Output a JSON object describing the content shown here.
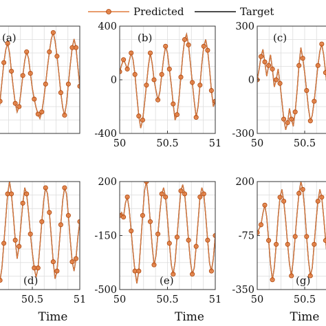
{
  "legend": {
    "items": [
      {
        "name": "Predicted",
        "color": "#e07a3c",
        "marker": "circle"
      },
      {
        "name": "Target",
        "color": "#111111",
        "marker": "none"
      }
    ],
    "placement": "top-center"
  },
  "chart_data": [
    {
      "type": "line",
      "panel_label": "(a)",
      "xlabel": "",
      "xlim": [
        50,
        51
      ],
      "ylim": [
        -500,
        500
      ],
      "xticks": [],
      "yticks": [],
      "yticklabels": [],
      "grid": true,
      "x": [
        50.0,
        50.02,
        50.04,
        50.06,
        50.08,
        50.1,
        50.12,
        50.14,
        50.16,
        50.18,
        50.2,
        50.22,
        50.24,
        50.26,
        50.28,
        50.3,
        50.32,
        50.34,
        50.36,
        50.38,
        50.4,
        50.42,
        50.44,
        50.46,
        50.48,
        50.5,
        50.52,
        50.54,
        50.56,
        50.58,
        50.6,
        50.62,
        50.64,
        50.66,
        50.68,
        50.7,
        50.72,
        50.74,
        50.76,
        50.78,
        50.8,
        50.82,
        50.84,
        50.86,
        50.88,
        50.9,
        50.92,
        50.94,
        50.96,
        50.98,
        51.0
      ],
      "series": [
        {
          "name": "Target",
          "values": [
            200,
            150,
            60,
            -60,
            -220,
            -380,
            -440,
            -360,
            -200,
            -20,
            160,
            280,
            340,
            250,
            80,
            -80,
            -220,
            -300,
            -250,
            -120,
            40,
            180,
            260,
            200,
            60,
            -80,
            -180,
            -260,
            -320,
            -360,
            -300,
            -180,
            -40,
            120,
            260,
            380,
            440,
            360,
            220,
            60,
            -120,
            -260,
            -330,
            -220,
            -40,
            140,
            300,
            380,
            300,
            120,
            -60
          ]
        },
        {
          "name": "Predicted",
          "values": [
            200,
            150,
            60,
            -60,
            -220,
            -380,
            -440,
            -360,
            -200,
            -20,
            160,
            280,
            340,
            250,
            80,
            -80,
            -220,
            -300,
            -250,
            -120,
            40,
            180,
            260,
            200,
            60,
            -80,
            -180,
            -260,
            -320,
            -360,
            -300,
            -180,
            -40,
            120,
            260,
            380,
            440,
            360,
            220,
            60,
            -120,
            -260,
            -330,
            -220,
            -40,
            140,
            300,
            380,
            300,
            120,
            -60
          ]
        }
      ]
    },
    {
      "type": "line",
      "panel_label": "(b)",
      "xlabel": "",
      "xlim": [
        50,
        51
      ],
      "ylim": [
        -400,
        400
      ],
      "xticks": [
        50,
        50.5,
        51
      ],
      "yticks": [
        -400,
        0,
        400
      ],
      "yticklabels": [
        "-400",
        "0",
        "400"
      ],
      "grid": true,
      "x": [
        50.0,
        50.02,
        50.04,
        50.06,
        50.08,
        50.1,
        50.12,
        50.14,
        50.16,
        50.18,
        50.2,
        50.22,
        50.24,
        50.26,
        50.28,
        50.3,
        50.32,
        50.34,
        50.36,
        50.38,
        50.4,
        50.42,
        50.44,
        50.46,
        50.48,
        50.5,
        50.52,
        50.54,
        50.56,
        50.58,
        50.6,
        50.62,
        50.64,
        50.66,
        50.68,
        50.7,
        50.72,
        50.74,
        50.76,
        50.78,
        50.8,
        50.82,
        50.84,
        50.86,
        50.88,
        50.9,
        50.92,
        50.94,
        50.96,
        50.98,
        51.0
      ],
      "series": [
        {
          "name": "Target",
          "values": [
            60,
            110,
            150,
            120,
            80,
            140,
            200,
            150,
            40,
            -120,
            -270,
            -360,
            -300,
            -180,
            -40,
            100,
            200,
            120,
            0,
            -80,
            -150,
            -90,
            40,
            160,
            250,
            200,
            80,
            -40,
            -180,
            -300,
            -260,
            -140,
            20,
            180,
            300,
            340,
            260,
            120,
            -20,
            -160,
            -280,
            -200,
            -40,
            120,
            250,
            300,
            220,
            80,
            -80,
            -200,
            -160
          ]
        },
        {
          "name": "Predicted",
          "values": [
            60,
            110,
            150,
            120,
            80,
            140,
            200,
            150,
            40,
            -120,
            -270,
            -360,
            -300,
            -180,
            -40,
            100,
            200,
            120,
            0,
            -80,
            -150,
            -90,
            40,
            160,
            250,
            200,
            80,
            -40,
            -180,
            -300,
            -260,
            -140,
            20,
            180,
            300,
            340,
            260,
            120,
            -20,
            -160,
            -280,
            -200,
            -40,
            120,
            250,
            300,
            220,
            80,
            -80,
            -200,
            -160
          ]
        }
      ]
    },
    {
      "type": "line",
      "panel_label": "(c)",
      "xlabel": "",
      "xlim": [
        50,
        51
      ],
      "ylim": [
        -300,
        300
      ],
      "xticks": [
        50,
        50.5
      ],
      "yticks": [
        -300,
        0,
        300
      ],
      "yticklabels": [
        "-300",
        "0",
        "300"
      ],
      "grid": true,
      "x": [
        50.0,
        50.02,
        50.04,
        50.06,
        50.08,
        50.1,
        50.12,
        50.14,
        50.16,
        50.18,
        50.2,
        50.22,
        50.24,
        50.26,
        50.28,
        50.3,
        50.32,
        50.34,
        50.36,
        50.38,
        50.4,
        50.42,
        50.44,
        50.46,
        50.48,
        50.5,
        50.52,
        50.54,
        50.56,
        50.58,
        50.6,
        50.62,
        50.64,
        50.66,
        50.68,
        50.7,
        50.72,
        50.74,
        50.76,
        50.78,
        50.8,
        50.82,
        50.84,
        50.86,
        50.88,
        50.9,
        50.92,
        50.94,
        50.96,
        50.98,
        51.0
      ],
      "series": [
        {
          "name": "Target",
          "values": [
            0,
            60,
            130,
            170,
            100,
            20,
            80,
            140,
            60,
            -40,
            0,
            60,
            -20,
            -120,
            -220,
            -280,
            -240,
            -160,
            -220,
            -260,
            -180,
            -60,
            80,
            180,
            120,
            40,
            -60,
            -160,
            -230,
            -200,
            -120,
            -20,
            80,
            160,
            200,
            140,
            40,
            -60,
            -140,
            -200,
            -160,
            -80,
            20,
            120,
            200,
            260,
            220,
            140,
            40,
            -60,
            -120
          ]
        },
        {
          "name": "Predicted",
          "values": [
            0,
            60,
            130,
            170,
            100,
            20,
            80,
            140,
            60,
            -40,
            0,
            60,
            -20,
            -120,
            -220,
            -280,
            -240,
            -160,
            -220,
            -260,
            -180,
            -60,
            80,
            180,
            120,
            40,
            -60,
            -160,
            -230,
            -200,
            -120,
            -20,
            80,
            160,
            200,
            140,
            40,
            -60,
            -140,
            -200,
            -160,
            -80,
            20,
            120,
            200,
            260,
            220,
            140,
            40,
            -60,
            -120
          ]
        }
      ]
    },
    {
      "type": "line",
      "panel_label": "(d)",
      "xlabel": "Time",
      "xlim": [
        50,
        51
      ],
      "ylim": [
        -500,
        200
      ],
      "xticks": [
        50.5,
        51
      ],
      "yticks": [],
      "yticklabels": [],
      "grid": true,
      "x": [
        50.0,
        50.02,
        50.04,
        50.06,
        50.08,
        50.1,
        50.12,
        50.14,
        50.16,
        50.18,
        50.2,
        50.22,
        50.24,
        50.26,
        50.28,
        50.3,
        50.32,
        50.34,
        50.36,
        50.38,
        50.4,
        50.42,
        50.44,
        50.46,
        50.48,
        50.5,
        50.52,
        50.54,
        50.56,
        50.58,
        50.6,
        50.62,
        50.64,
        50.66,
        50.68,
        50.7,
        50.72,
        50.74,
        50.76,
        50.78,
        50.8,
        50.82,
        50.84,
        50.86,
        50.88,
        50.9,
        50.92,
        50.94,
        50.96,
        50.98,
        51.0
      ],
      "series": [
        {
          "name": "Target",
          "values": [
            -100,
            0,
            120,
            180,
            100,
            -40,
            -200,
            -350,
            -440,
            -360,
            -200,
            -40,
            120,
            200,
            120,
            -20,
            -180,
            -300,
            -220,
            -80,
            60,
            160,
            120,
            0,
            -140,
            -260,
            -360,
            -420,
            -360,
            -220,
            -60,
            80,
            160,
            120,
            0,
            -160,
            -320,
            -430,
            -380,
            -240,
            -80,
            80,
            160,
            120,
            -20,
            -180,
            -320,
            -380,
            -300,
            -160,
            -60
          ]
        },
        {
          "name": "Predicted",
          "values": [
            -100,
            0,
            120,
            180,
            100,
            -40,
            -200,
            -350,
            -440,
            -360,
            -200,
            -40,
            120,
            200,
            120,
            -20,
            -180,
            -300,
            -220,
            -80,
            60,
            160,
            120,
            0,
            -140,
            -260,
            -360,
            -420,
            -360,
            -220,
            -60,
            80,
            160,
            120,
            0,
            -160,
            -320,
            -430,
            -380,
            -240,
            -80,
            80,
            160,
            120,
            -20,
            -180,
            -320,
            -380,
            -300,
            -160,
            -60
          ]
        }
      ]
    },
    {
      "type": "line",
      "panel_label": "(e)",
      "xlabel": "Time",
      "xlim": [
        50,
        51
      ],
      "ylim": [
        -500,
        200
      ],
      "xticks": [
        50,
        50.5,
        51
      ],
      "yticks": [
        -500,
        -150,
        200
      ],
      "yticklabels": [
        "-500",
        "-150",
        "200"
      ],
      "grid": true,
      "x": [
        50.0,
        50.02,
        50.04,
        50.06,
        50.08,
        50.1,
        50.12,
        50.14,
        50.16,
        50.18,
        50.2,
        50.22,
        50.24,
        50.26,
        50.28,
        50.3,
        50.32,
        50.34,
        50.36,
        50.38,
        50.4,
        50.42,
        50.44,
        50.46,
        50.48,
        50.5,
        50.52,
        50.54,
        50.56,
        50.58,
        50.6,
        50.62,
        50.64,
        50.66,
        50.68,
        50.7,
        50.72,
        50.74,
        50.76,
        50.78,
        50.8,
        50.82,
        50.84,
        50.86,
        50.88,
        50.9,
        50.92,
        50.94,
        50.96,
        50.98,
        51.0
      ],
      "series": [
        {
          "name": "Target",
          "values": [
            -20,
            0,
            -30,
            60,
            100,
            20,
            -120,
            -260,
            -380,
            -460,
            -380,
            -200,
            -20,
            140,
            200,
            100,
            -60,
            -220,
            -340,
            -280,
            -140,
            0,
            120,
            160,
            100,
            -40,
            -200,
            -340,
            -400,
            -320,
            -160,
            0,
            140,
            180,
            120,
            -20,
            -180,
            -320,
            -400,
            -360,
            -220,
            -60,
            100,
            160,
            120,
            -20,
            -180,
            -330,
            -380,
            -300,
            -150
          ]
        },
        {
          "name": "Predicted",
          "values": [
            -20,
            0,
            -30,
            60,
            100,
            20,
            -120,
            -260,
            -380,
            -460,
            -380,
            -200,
            -20,
            140,
            200,
            100,
            -60,
            -220,
            -340,
            -280,
            -140,
            0,
            120,
            160,
            100,
            -40,
            -200,
            -340,
            -400,
            -320,
            -160,
            0,
            140,
            180,
            120,
            -20,
            -180,
            -320,
            -400,
            -360,
            -220,
            -60,
            100,
            160,
            120,
            -20,
            -180,
            -330,
            -380,
            -300,
            -150
          ]
        }
      ]
    },
    {
      "type": "line",
      "panel_label": "(g)",
      "xlabel": "Time",
      "xlim": [
        50,
        51
      ],
      "ylim": [
        -350,
        200
      ],
      "xticks": [
        50,
        50.5
      ],
      "yticks": [
        -350,
        -75,
        200
      ],
      "yticklabels": [
        "-350",
        "-75",
        "200"
      ],
      "grid": true,
      "x": [
        50.0,
        50.02,
        50.04,
        50.06,
        50.08,
        50.1,
        50.12,
        50.14,
        50.16,
        50.18,
        50.2,
        50.22,
        50.24,
        50.26,
        50.28,
        50.3,
        50.32,
        50.34,
        50.36,
        50.38,
        50.4,
        50.42,
        50.44,
        50.46,
        50.48,
        50.5,
        50.52,
        50.54,
        50.56,
        50.58,
        50.6,
        50.62,
        50.64,
        50.66,
        50.68,
        50.7,
        50.72,
        50.74,
        50.76,
        50.78,
        50.8,
        50.82,
        50.84,
        50.86,
        50.88,
        50.9,
        50.92,
        50.94,
        50.96,
        50.98,
        51.0
      ],
      "series": [
        {
          "name": "Target",
          "values": [
            -60,
            -40,
            -20,
            40,
            80,
            20,
            -100,
            -220,
            -300,
            -240,
            -120,
            20,
            120,
            160,
            100,
            0,
            -120,
            -220,
            -280,
            -200,
            -80,
            40,
            140,
            200,
            160,
            60,
            -80,
            -200,
            -280,
            -240,
            -120,
            0,
            100,
            160,
            120,
            20,
            -100,
            -200,
            -260,
            -220,
            -120,
            0,
            100,
            160,
            120,
            0,
            -120,
            -220,
            -280,
            -240,
            -160
          ]
        },
        {
          "name": "Predicted",
          "values": [
            -60,
            -40,
            -20,
            40,
            80,
            20,
            -100,
            -220,
            -300,
            -240,
            -120,
            20,
            120,
            160,
            100,
            0,
            -120,
            -220,
            -280,
            -200,
            -80,
            40,
            140,
            200,
            160,
            60,
            -80,
            -200,
            -280,
            -240,
            -120,
            0,
            100,
            160,
            120,
            20,
            -100,
            -200,
            -260,
            -220,
            -120,
            0,
            100,
            160,
            120,
            0,
            -120,
            -220,
            -280,
            -240,
            -160
          ]
        }
      ]
    }
  ]
}
